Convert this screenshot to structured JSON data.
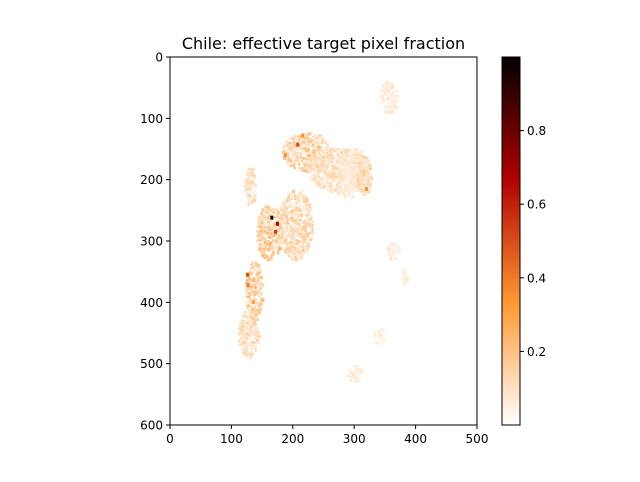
{
  "chart_data": {
    "type": "heatmap",
    "title": "Chile: effective target pixel fraction",
    "x_ticks": [
      0,
      100,
      200,
      300,
      400,
      500
    ],
    "y_ticks": [
      0,
      100,
      200,
      300,
      400,
      500,
      600
    ],
    "xlim": [
      0,
      500
    ],
    "ylim": [
      600,
      0
    ],
    "colormap": "gist_heat_r",
    "colorbar": {
      "range": [
        0,
        1
      ],
      "ticks": [
        "0.2",
        "0.4",
        "0.6",
        "0.8"
      ],
      "tick_values": [
        0.2,
        0.4,
        0.6,
        0.8
      ]
    },
    "grid": false,
    "regions": [
      {
        "x": [
          340,
          370
        ],
        "y": [
          38,
          92
        ],
        "intensity": 0.06
      },
      {
        "x": [
          182,
          262
        ],
        "y": [
          122,
          185
        ],
        "intensity": 0.14
      },
      {
        "x": [
          224,
          322
        ],
        "y": [
          145,
          220
        ],
        "intensity": 0.1
      },
      {
        "x": [
          275,
          325
        ],
        "y": [
          148,
          220
        ],
        "intensity": 0.08
      },
      {
        "x": [
          303,
          327
        ],
        "y": [
          160,
          222
        ],
        "intensity": 0.12
      },
      {
        "x": [
          278,
          302
        ],
        "y": [
          165,
          232
        ],
        "intensity": 0.06
      },
      {
        "x": [
          119,
          140
        ],
        "y": [
          178,
          240
        ],
        "intensity": 0.1
      },
      {
        "x": [
          139,
          182
        ],
        "y": [
          240,
          330
        ],
        "intensity": 0.16
      },
      {
        "x": [
          175,
          232
        ],
        "y": [
          215,
          330
        ],
        "intensity": 0.12
      },
      {
        "x": [
          122,
          150
        ],
        "y": [
          330,
          430
        ],
        "intensity": 0.16
      },
      {
        "x": [
          110,
          143
        ],
        "y": [
          410,
          490
        ],
        "intensity": 0.1
      },
      {
        "x": [
          350,
          372
        ],
        "y": [
          300,
          330
        ],
        "intensity": 0.06
      },
      {
        "x": [
          375,
          385
        ],
        "y": [
          340,
          375
        ],
        "intensity": 0.06
      },
      {
        "x": [
          288,
          310
        ],
        "y": [
          500,
          530
        ],
        "intensity": 0.06
      },
      {
        "x": [
          330,
          350
        ],
        "y": [
          440,
          470
        ],
        "intensity": 0.05
      }
    ],
    "hotspots": [
      {
        "x": 166,
        "y": 262,
        "value": 0.95
      },
      {
        "x": 175,
        "y": 272,
        "value": 0.7
      },
      {
        "x": 172,
        "y": 285,
        "value": 0.55
      },
      {
        "x": 126,
        "y": 355,
        "value": 0.5
      },
      {
        "x": 127,
        "y": 372,
        "value": 0.4
      },
      {
        "x": 208,
        "y": 143,
        "value": 0.5
      },
      {
        "x": 216,
        "y": 128,
        "value": 0.35
      },
      {
        "x": 320,
        "y": 215,
        "value": 0.35
      },
      {
        "x": 188,
        "y": 160,
        "value": 0.35
      },
      {
        "x": 136,
        "y": 400,
        "value": 0.3
      }
    ]
  }
}
